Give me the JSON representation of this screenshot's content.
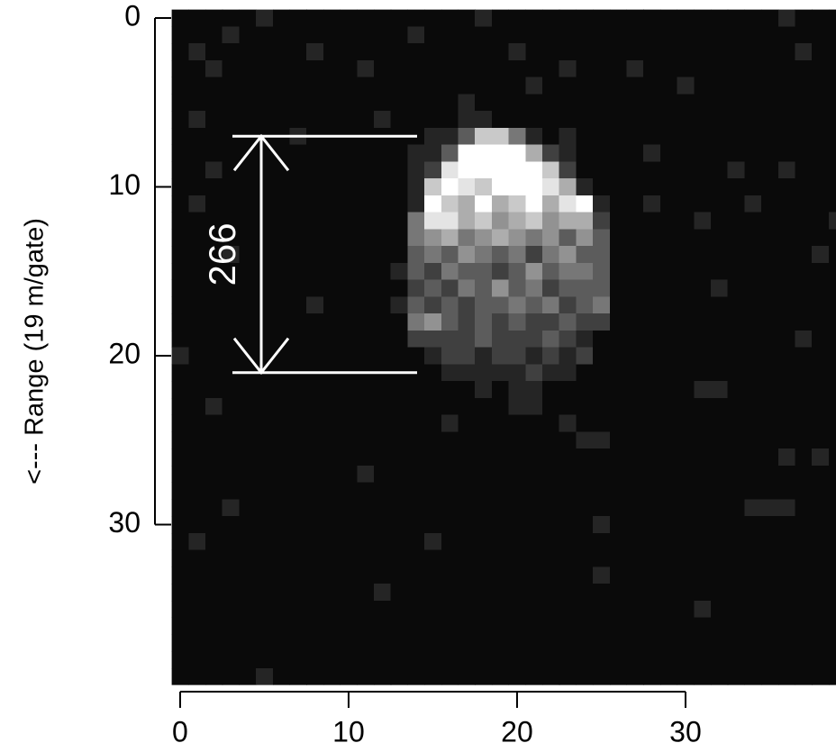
{
  "chart_data": {
    "type": "heatmap",
    "cmap": "gray",
    "ylabel": "<--- Range (19 m/gate)",
    "xlim": [
      -0.5,
      38.9
    ],
    "xticks": [
      0,
      10,
      20,
      30
    ],
    "ylim": [
      39.5,
      -0.5
    ],
    "yticks": [
      0,
      10,
      20,
      30
    ],
    "annotation": {
      "text": "266",
      "y_from": 7,
      "y_to": 21
    },
    "z": [
      [
        0,
        0,
        0,
        0,
        0,
        1,
        0,
        0,
        0,
        0,
        0,
        0,
        0,
        0,
        0,
        0,
        0,
        0,
        1,
        0,
        0,
        0,
        0,
        0,
        0,
        0,
        0,
        0,
        0,
        0,
        0,
        0,
        0,
        0,
        0,
        0,
        1,
        0,
        0,
        0
      ],
      [
        0,
        0,
        0,
        1,
        0,
        0,
        0,
        0,
        0,
        0,
        0,
        0,
        0,
        0,
        1,
        0,
        0,
        0,
        0,
        0,
        0,
        0,
        0,
        0,
        0,
        0,
        0,
        0,
        0,
        0,
        0,
        0,
        0,
        0,
        0,
        0,
        0,
        0,
        0,
        0
      ],
      [
        0,
        1,
        0,
        0,
        0,
        0,
        0,
        0,
        1,
        0,
        0,
        0,
        0,
        0,
        0,
        0,
        0,
        0,
        0,
        0,
        1,
        0,
        0,
        0,
        0,
        0,
        0,
        0,
        0,
        0,
        0,
        0,
        0,
        0,
        0,
        0,
        0,
        1,
        0,
        0
      ],
      [
        0,
        0,
        1,
        0,
        0,
        0,
        0,
        0,
        0,
        0,
        0,
        1,
        0,
        0,
        0,
        0,
        0,
        0,
        0,
        0,
        0,
        0,
        0,
        1,
        0,
        0,
        0,
        1,
        0,
        0,
        0,
        0,
        0,
        0,
        0,
        0,
        0,
        0,
        0,
        0
      ],
      [
        0,
        0,
        0,
        0,
        0,
        0,
        0,
        0,
        0,
        0,
        0,
        0,
        0,
        0,
        0,
        0,
        0,
        0,
        0,
        0,
        0,
        1,
        0,
        0,
        0,
        0,
        0,
        0,
        0,
        0,
        1,
        0,
        0,
        0,
        0,
        0,
        0,
        0,
        0,
        0
      ],
      [
        0,
        0,
        0,
        0,
        0,
        0,
        0,
        0,
        0,
        0,
        0,
        0,
        0,
        0,
        0,
        0,
        0,
        1,
        0,
        0,
        0,
        0,
        0,
        0,
        0,
        0,
        0,
        0,
        0,
        0,
        0,
        0,
        0,
        0,
        0,
        0,
        0,
        0,
        0,
        0
      ],
      [
        0,
        1,
        0,
        0,
        0,
        0,
        0,
        0,
        0,
        0,
        0,
        0,
        1,
        0,
        0,
        0,
        0,
        1,
        1,
        0,
        0,
        0,
        0,
        0,
        0,
        0,
        0,
        0,
        0,
        0,
        0,
        0,
        0,
        0,
        0,
        0,
        0,
        0,
        0,
        0
      ],
      [
        0,
        0,
        0,
        0,
        0,
        0,
        0,
        1,
        0,
        0,
        0,
        0,
        0,
        0,
        0,
        1,
        1,
        3,
        7,
        7,
        4,
        1,
        0,
        1,
        0,
        0,
        0,
        0,
        0,
        0,
        0,
        0,
        0,
        0,
        0,
        0,
        0,
        0,
        0,
        0
      ],
      [
        0,
        0,
        0,
        0,
        0,
        0,
        0,
        0,
        0,
        0,
        0,
        0,
        0,
        0,
        1,
        1,
        3,
        9,
        9,
        9,
        9,
        6,
        2,
        1,
        0,
        0,
        0,
        0,
        1,
        0,
        0,
        0,
        0,
        0,
        0,
        0,
        0,
        0,
        0,
        0
      ],
      [
        0,
        0,
        1,
        0,
        0,
        0,
        0,
        0,
        0,
        0,
        0,
        0,
        0,
        0,
        1,
        2,
        8,
        9,
        9,
        9,
        9,
        9,
        7,
        2,
        0,
        0,
        0,
        0,
        0,
        0,
        0,
        0,
        0,
        1,
        0,
        0,
        1,
        0,
        0,
        0
      ],
      [
        0,
        0,
        0,
        0,
        0,
        0,
        0,
        0,
        0,
        0,
        0,
        0,
        0,
        0,
        1,
        7,
        9,
        8,
        7,
        9,
        9,
        9,
        8,
        6,
        1,
        0,
        0,
        0,
        0,
        0,
        0,
        0,
        0,
        0,
        0,
        0,
        0,
        0,
        0,
        0
      ],
      [
        0,
        1,
        0,
        0,
        0,
        0,
        0,
        0,
        0,
        0,
        0,
        0,
        0,
        0,
        1,
        9,
        7,
        6,
        9,
        6,
        7,
        9,
        6,
        8,
        9,
        1,
        0,
        0,
        1,
        0,
        0,
        0,
        0,
        0,
        1,
        0,
        0,
        0,
        0,
        0
      ],
      [
        0,
        0,
        0,
        0,
        0,
        0,
        0,
        0,
        0,
        0,
        0,
        0,
        0,
        0,
        4,
        8,
        8,
        6,
        7,
        5,
        6,
        7,
        5,
        6,
        6,
        2,
        0,
        0,
        0,
        0,
        0,
        1,
        0,
        0,
        0,
        0,
        0,
        0,
        0,
        1
      ],
      [
        0,
        0,
        0,
        0,
        0,
        0,
        0,
        0,
        0,
        0,
        0,
        0,
        0,
        0,
        4,
        5,
        6,
        4,
        5,
        6,
        5,
        4,
        5,
        3,
        5,
        3,
        0,
        0,
        0,
        0,
        0,
        0,
        0,
        0,
        0,
        0,
        0,
        0,
        0,
        0
      ],
      [
        0,
        0,
        0,
        1,
        0,
        0,
        0,
        0,
        0,
        0,
        0,
        0,
        0,
        0,
        3,
        4,
        3,
        5,
        4,
        3,
        4,
        2,
        4,
        5,
        3,
        3,
        0,
        0,
        0,
        0,
        0,
        0,
        0,
        0,
        0,
        0,
        0,
        0,
        1,
        0
      ],
      [
        0,
        0,
        0,
        0,
        0,
        0,
        0,
        0,
        0,
        0,
        0,
        0,
        0,
        1,
        3,
        2,
        4,
        3,
        3,
        2,
        3,
        5,
        3,
        4,
        4,
        3,
        0,
        0,
        0,
        0,
        0,
        0,
        0,
        0,
        0,
        0,
        0,
        0,
        0,
        0
      ],
      [
        0,
        0,
        0,
        0,
        0,
        0,
        0,
        0,
        0,
        0,
        0,
        0,
        0,
        0,
        2,
        3,
        2,
        4,
        3,
        5,
        3,
        4,
        2,
        3,
        3,
        3,
        0,
        0,
        0,
        0,
        0,
        0,
        1,
        0,
        0,
        0,
        0,
        0,
        0,
        0
      ],
      [
        0,
        0,
        0,
        0,
        0,
        0,
        0,
        0,
        1,
        0,
        0,
        0,
        0,
        1,
        3,
        2,
        3,
        2,
        3,
        3,
        4,
        3,
        4,
        2,
        3,
        4,
        0,
        0,
        0,
        0,
        0,
        0,
        0,
        0,
        0,
        0,
        0,
        0,
        0,
        0
      ],
      [
        0,
        0,
        0,
        0,
        0,
        0,
        0,
        0,
        0,
        0,
        0,
        0,
        0,
        0,
        4,
        5,
        3,
        2,
        3,
        2,
        3,
        2,
        2,
        3,
        2,
        2,
        0,
        0,
        0,
        0,
        0,
        0,
        0,
        0,
        0,
        0,
        0,
        0,
        0,
        0
      ],
      [
        0,
        0,
        0,
        0,
        0,
        0,
        0,
        0,
        0,
        0,
        0,
        0,
        0,
        0,
        2,
        2,
        2,
        2,
        3,
        2,
        2,
        2,
        3,
        2,
        1,
        0,
        0,
        0,
        0,
        0,
        0,
        0,
        0,
        0,
        0,
        0,
        0,
        1,
        0,
        0
      ],
      [
        1,
        0,
        0,
        0,
        0,
        0,
        0,
        0,
        0,
        0,
        0,
        0,
        0,
        0,
        0,
        1,
        2,
        2,
        1,
        2,
        2,
        1,
        2,
        1,
        2,
        0,
        0,
        0,
        0,
        0,
        0,
        0,
        0,
        0,
        0,
        0,
        0,
        0,
        0,
        0
      ],
      [
        0,
        0,
        0,
        0,
        0,
        0,
        0,
        0,
        0,
        0,
        0,
        0,
        0,
        0,
        0,
        0,
        1,
        1,
        1,
        1,
        1,
        2,
        1,
        1,
        0,
        0,
        0,
        0,
        0,
        0,
        0,
        0,
        0,
        0,
        0,
        0,
        0,
        0,
        0,
        0
      ],
      [
        0,
        0,
        0,
        0,
        0,
        0,
        0,
        0,
        0,
        0,
        0,
        0,
        0,
        0,
        0,
        0,
        0,
        0,
        1,
        0,
        1,
        1,
        0,
        0,
        0,
        0,
        0,
        0,
        0,
        0,
        0,
        1,
        1,
        0,
        0,
        0,
        0,
        0,
        0,
        0
      ],
      [
        0,
        0,
        1,
        0,
        0,
        0,
        0,
        0,
        0,
        0,
        0,
        0,
        0,
        0,
        0,
        0,
        0,
        0,
        0,
        0,
        1,
        1,
        0,
        0,
        0,
        0,
        0,
        0,
        0,
        0,
        0,
        0,
        0,
        0,
        0,
        0,
        0,
        0,
        0,
        0
      ],
      [
        0,
        0,
        0,
        0,
        0,
        0,
        0,
        0,
        0,
        0,
        0,
        0,
        0,
        0,
        0,
        0,
        1,
        0,
        0,
        0,
        0,
        0,
        0,
        1,
        0,
        0,
        0,
        0,
        0,
        0,
        0,
        0,
        0,
        0,
        0,
        0,
        0,
        0,
        0,
        0
      ],
      [
        0,
        0,
        0,
        0,
        0,
        0,
        0,
        0,
        0,
        0,
        0,
        0,
        0,
        0,
        0,
        0,
        0,
        0,
        0,
        0,
        0,
        0,
        0,
        0,
        1,
        1,
        0,
        0,
        0,
        0,
        0,
        0,
        0,
        0,
        0,
        0,
        0,
        0,
        0,
        0
      ],
      [
        0,
        0,
        0,
        0,
        0,
        0,
        0,
        0,
        0,
        0,
        0,
        0,
        0,
        0,
        0,
        0,
        0,
        0,
        0,
        0,
        0,
        0,
        0,
        0,
        0,
        0,
        0,
        0,
        0,
        0,
        0,
        0,
        0,
        0,
        0,
        0,
        1,
        0,
        1,
        0
      ],
      [
        0,
        0,
        0,
        0,
        0,
        0,
        0,
        0,
        0,
        0,
        0,
        1,
        0,
        0,
        0,
        0,
        0,
        0,
        0,
        0,
        0,
        0,
        0,
        0,
        0,
        0,
        0,
        0,
        0,
        0,
        0,
        0,
        0,
        0,
        0,
        0,
        0,
        0,
        0,
        0
      ],
      [
        0,
        0,
        0,
        0,
        0,
        0,
        0,
        0,
        0,
        0,
        0,
        0,
        0,
        0,
        0,
        0,
        0,
        0,
        0,
        0,
        0,
        0,
        0,
        0,
        0,
        0,
        0,
        0,
        0,
        0,
        0,
        0,
        0,
        0,
        0,
        0,
        0,
        0,
        0,
        0
      ],
      [
        0,
        0,
        0,
        1,
        0,
        0,
        0,
        0,
        0,
        0,
        0,
        0,
        0,
        0,
        0,
        0,
        0,
        0,
        0,
        0,
        0,
        0,
        0,
        0,
        0,
        0,
        0,
        0,
        0,
        0,
        0,
        0,
        0,
        0,
        1,
        1,
        1,
        0,
        0,
        0
      ],
      [
        0,
        0,
        0,
        0,
        0,
        0,
        0,
        0,
        0,
        0,
        0,
        0,
        0,
        0,
        0,
        0,
        0,
        0,
        0,
        0,
        0,
        0,
        0,
        0,
        0,
        1,
        0,
        0,
        0,
        0,
        0,
        0,
        0,
        0,
        0,
        0,
        0,
        0,
        0,
        0
      ],
      [
        0,
        1,
        0,
        0,
        0,
        0,
        0,
        0,
        0,
        0,
        0,
        0,
        0,
        0,
        0,
        1,
        0,
        0,
        0,
        0,
        0,
        0,
        0,
        0,
        0,
        0,
        0,
        0,
        0,
        0,
        0,
        0,
        0,
        0,
        0,
        0,
        0,
        0,
        0,
        0
      ],
      [
        0,
        0,
        0,
        0,
        0,
        0,
        0,
        0,
        0,
        0,
        0,
        0,
        0,
        0,
        0,
        0,
        0,
        0,
        0,
        0,
        0,
        0,
        0,
        0,
        0,
        0,
        0,
        0,
        0,
        0,
        0,
        0,
        0,
        0,
        0,
        0,
        0,
        0,
        0,
        0
      ],
      [
        0,
        0,
        0,
        0,
        0,
        0,
        0,
        0,
        0,
        0,
        0,
        0,
        0,
        0,
        0,
        0,
        0,
        0,
        0,
        0,
        0,
        0,
        0,
        0,
        0,
        1,
        0,
        0,
        0,
        0,
        0,
        0,
        0,
        0,
        0,
        0,
        0,
        0,
        0,
        0
      ],
      [
        0,
        0,
        0,
        0,
        0,
        0,
        0,
        0,
        0,
        0,
        0,
        0,
        1,
        0,
        0,
        0,
        0,
        0,
        0,
        0,
        0,
        0,
        0,
        0,
        0,
        0,
        0,
        0,
        0,
        0,
        0,
        0,
        0,
        0,
        0,
        0,
        0,
        0,
        0,
        0
      ],
      [
        0,
        0,
        0,
        0,
        0,
        0,
        0,
        0,
        0,
        0,
        0,
        0,
        0,
        0,
        0,
        0,
        0,
        0,
        0,
        0,
        0,
        0,
        0,
        0,
        0,
        0,
        0,
        0,
        0,
        0,
        0,
        1,
        0,
        0,
        0,
        0,
        0,
        0,
        0,
        0
      ],
      [
        0,
        0,
        0,
        0,
        0,
        0,
        0,
        0,
        0,
        0,
        0,
        0,
        0,
        0,
        0,
        0,
        0,
        0,
        0,
        0,
        0,
        0,
        0,
        0,
        0,
        0,
        0,
        0,
        0,
        0,
        0,
        0,
        0,
        0,
        0,
        0,
        0,
        0,
        0,
        0
      ],
      [
        0,
        0,
        0,
        0,
        0,
        0,
        0,
        0,
        0,
        0,
        0,
        0,
        0,
        0,
        0,
        0,
        0,
        0,
        0,
        0,
        0,
        0,
        0,
        0,
        0,
        0,
        0,
        0,
        0,
        0,
        0,
        0,
        0,
        0,
        0,
        0,
        0,
        0,
        0,
        0
      ],
      [
        0,
        0,
        0,
        0,
        0,
        0,
        0,
        0,
        0,
        0,
        0,
        0,
        0,
        0,
        0,
        0,
        0,
        0,
        0,
        0,
        0,
        0,
        0,
        0,
        0,
        0,
        0,
        0,
        0,
        0,
        0,
        0,
        0,
        0,
        0,
        0,
        0,
        0,
        0,
        0
      ],
      [
        0,
        0,
        0,
        0,
        0,
        1,
        0,
        0,
        0,
        0,
        0,
        0,
        0,
        0,
        0,
        0,
        0,
        0,
        0,
        0,
        0,
        0,
        0,
        0,
        0,
        0,
        0,
        0,
        0,
        0,
        0,
        0,
        0,
        0,
        0,
        0,
        0,
        0,
        0,
        0
      ]
    ]
  }
}
